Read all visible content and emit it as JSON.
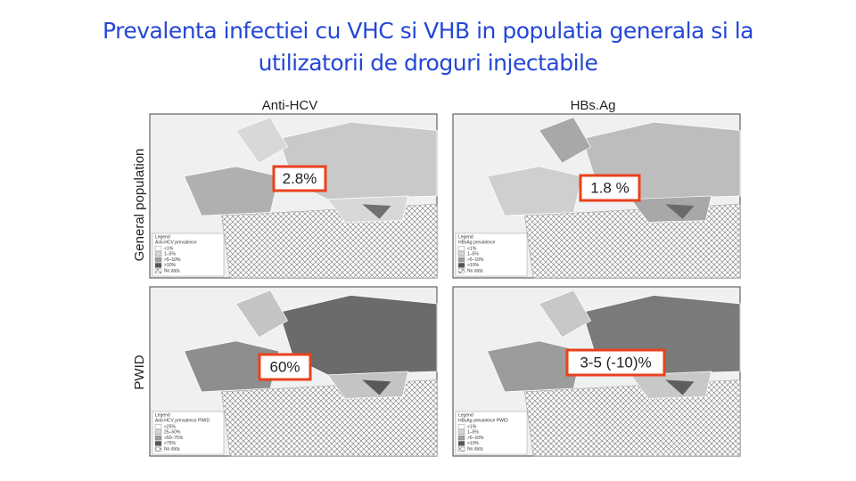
{
  "title": [
    "Prevalenta infectiei cu VHC si VHB in populatia generala si la",
    "utilizatorii de droguri injectabile"
  ],
  "columns": [
    "Anti-HCV",
    "HBs.Ag"
  ],
  "rows": [
    "General population",
    "PWID"
  ],
  "maps": [
    {
      "callout": "2.8%",
      "legend": {
        "heading": [
          "Legend",
          "Anti-HCV prevalence"
        ],
        "items": [
          "<1%",
          "1–5%",
          ">5–10%",
          ">10%",
          "No data"
        ]
      }
    },
    {
      "callout": "1.8 %",
      "legend": {
        "heading": [
          "Legend",
          "HBsAg prevalence"
        ],
        "items": [
          "<1%",
          "1–5%",
          ">5–10%",
          ">10%",
          "No data"
        ]
      }
    },
    {
      "callout": "60%",
      "legend": {
        "heading": [
          "Legend",
          "Anti-HCV prevalence PWID"
        ],
        "items": [
          "<25%",
          "25–50%",
          ">50–75%",
          ">75%",
          "No data"
        ]
      }
    },
    {
      "callout": "3-5 (-10)%",
      "legend": {
        "heading": [
          "Legend",
          "HBsAg prevalence PWID"
        ],
        "items": [
          "<1%",
          "1–5%",
          ">5–10%",
          ">10%",
          "No data"
        ]
      }
    }
  ]
}
